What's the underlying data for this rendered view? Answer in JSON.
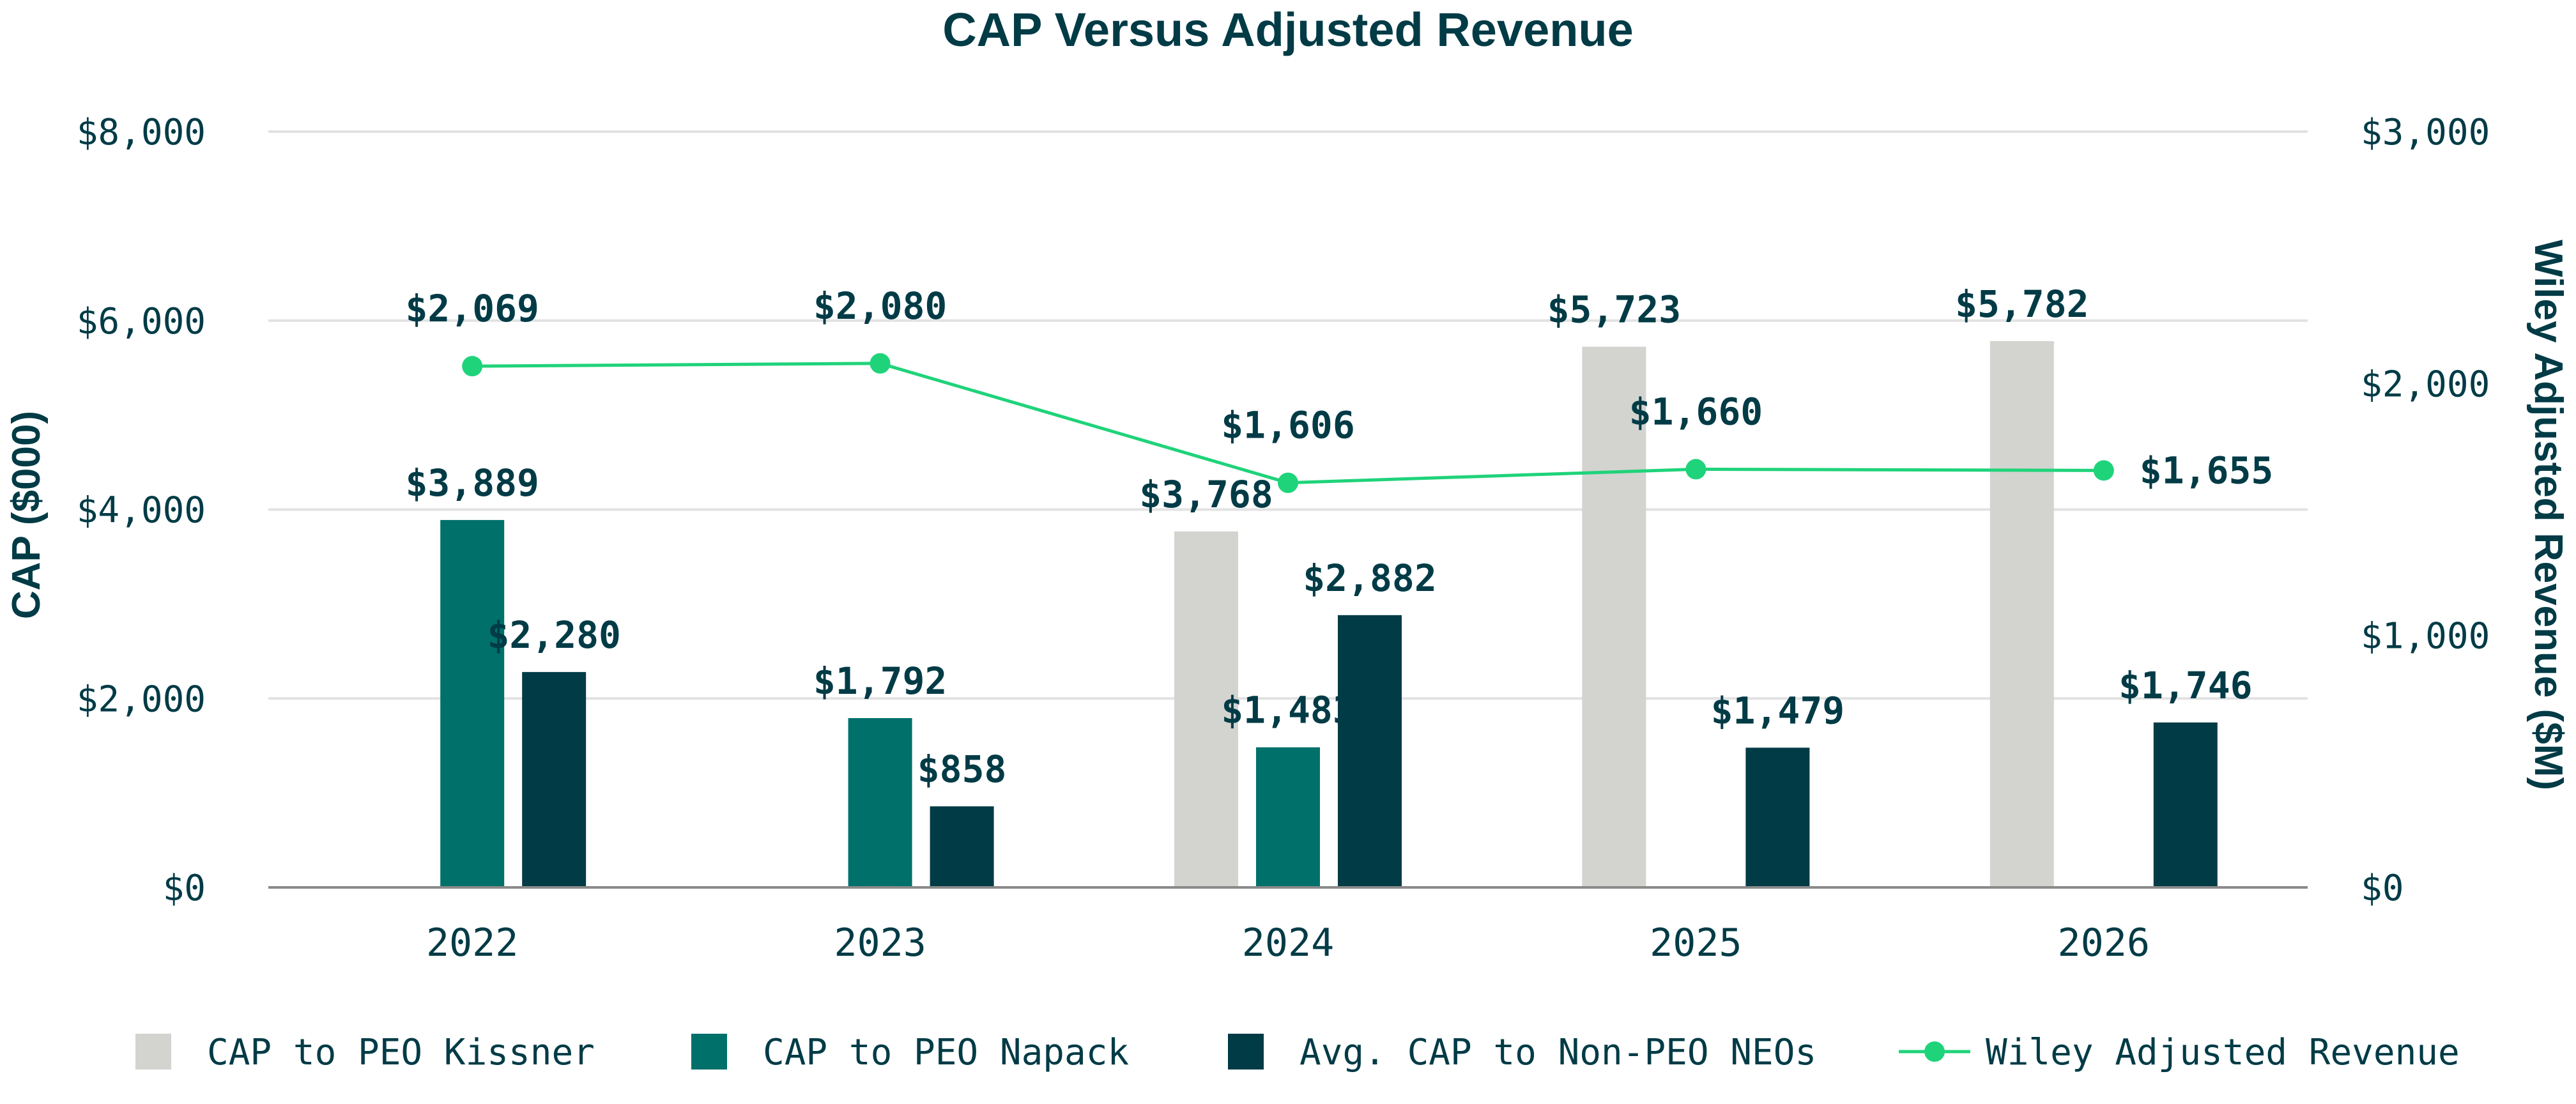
{
  "chart_data": {
    "type": "bar",
    "title": "CAP Versus Adjusted Revenue",
    "ylabel": "CAP ($000)",
    "y2label": "Wiley Adjusted Revenue ($M)",
    "ylim": [
      0,
      8000
    ],
    "y2lim": [
      0,
      3000
    ],
    "yticks": [
      "$0",
      "$2,000",
      "$4,000",
      "$6,000",
      "$8,000"
    ],
    "y2ticks": [
      "$0",
      "$1,000",
      "$2,000",
      "$3,000"
    ],
    "grid": true,
    "legend_position": "bottom",
    "categories": [
      "2022",
      "2023",
      "2024",
      "2025",
      "2026"
    ],
    "series": [
      {
        "name": "CAP to PEO Kissner",
        "type": "bar",
        "color": "#d3d3cf",
        "values": [
          null,
          null,
          3768,
          5723,
          5782
        ],
        "labels": [
          "",
          "",
          "$3,768",
          "$5,723",
          "$5,782"
        ]
      },
      {
        "name": "CAP to PEO Napack",
        "type": "bar",
        "color": "#00706b",
        "values": [
          3889,
          1792,
          1483,
          null,
          null
        ],
        "labels": [
          "$3,889",
          "$1,792",
          "$1,483",
          "",
          ""
        ]
      },
      {
        "name": "Avg. CAP to Non-PEO NEOs",
        "type": "bar",
        "color": "#003b46",
        "values": [
          2280,
          858,
          2882,
          1479,
          1746
        ],
        "labels": [
          "$2,280",
          "$858",
          "$2,882",
          "$1,479",
          "$1,746"
        ]
      },
      {
        "name": "Wiley Adjusted Revenue",
        "type": "line",
        "axis": "right",
        "color": "#1fd37a",
        "values": [
          2069,
          2080,
          1606,
          1660,
          1655
        ],
        "labels": [
          "$2,069",
          "$2,080",
          "$1,606",
          "$1,660",
          "$1,655"
        ]
      }
    ]
  }
}
